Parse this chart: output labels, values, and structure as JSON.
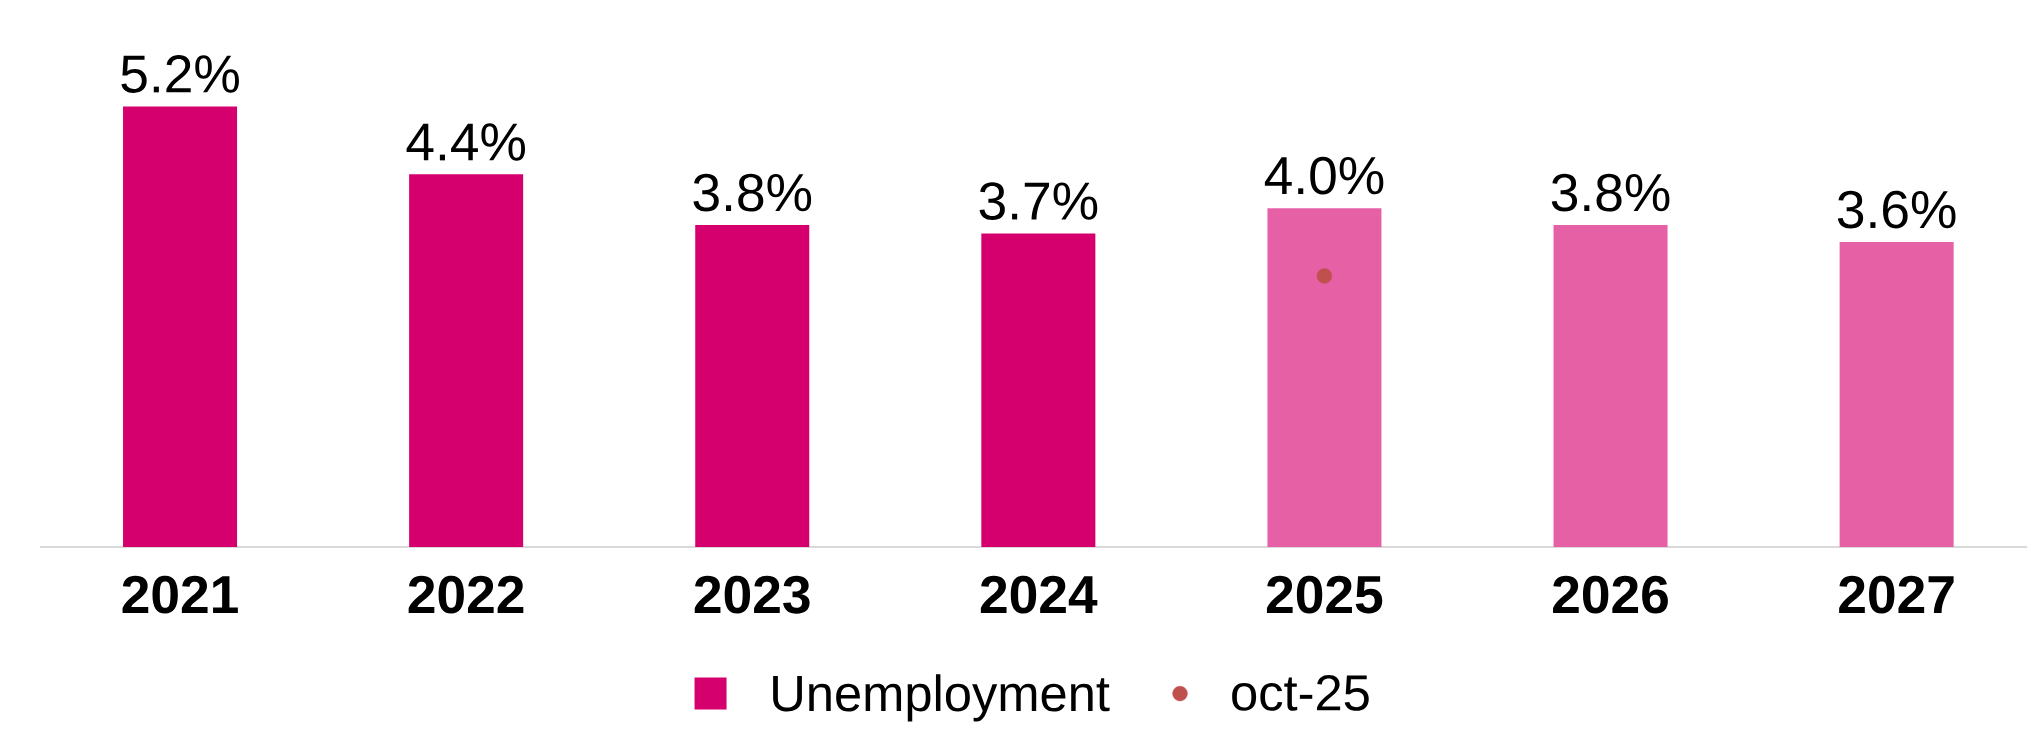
{
  "chart_data": {
    "type": "bar",
    "categories": [
      "2021",
      "2022",
      "2023",
      "2024",
      "2025",
      "2026",
      "2027"
    ],
    "legend": "bottom",
    "series": [
      {
        "name": "Unemployment",
        "color": "#d5006d",
        "values": [
          5.2,
          4.4,
          3.8,
          3.7,
          null,
          null,
          null
        ],
        "value_labels": [
          "5.2%",
          "4.4%",
          "3.8%",
          "3.7%",
          null,
          null,
          null
        ]
      },
      {
        "color": "#e660a5",
        "values": [
          null,
          null,
          null,
          null,
          4.0,
          3.8,
          3.6
        ],
        "value_labels": [
          null,
          null,
          null,
          null,
          "4.0%",
          "3.8%",
          "3.6%"
        ]
      },
      {
        "name": "oct-25",
        "type": "scatter",
        "color": "#c0504d",
        "marker": "circle",
        "values": [
          null,
          null,
          null,
          null,
          3.2,
          null,
          null
        ]
      }
    ]
  }
}
